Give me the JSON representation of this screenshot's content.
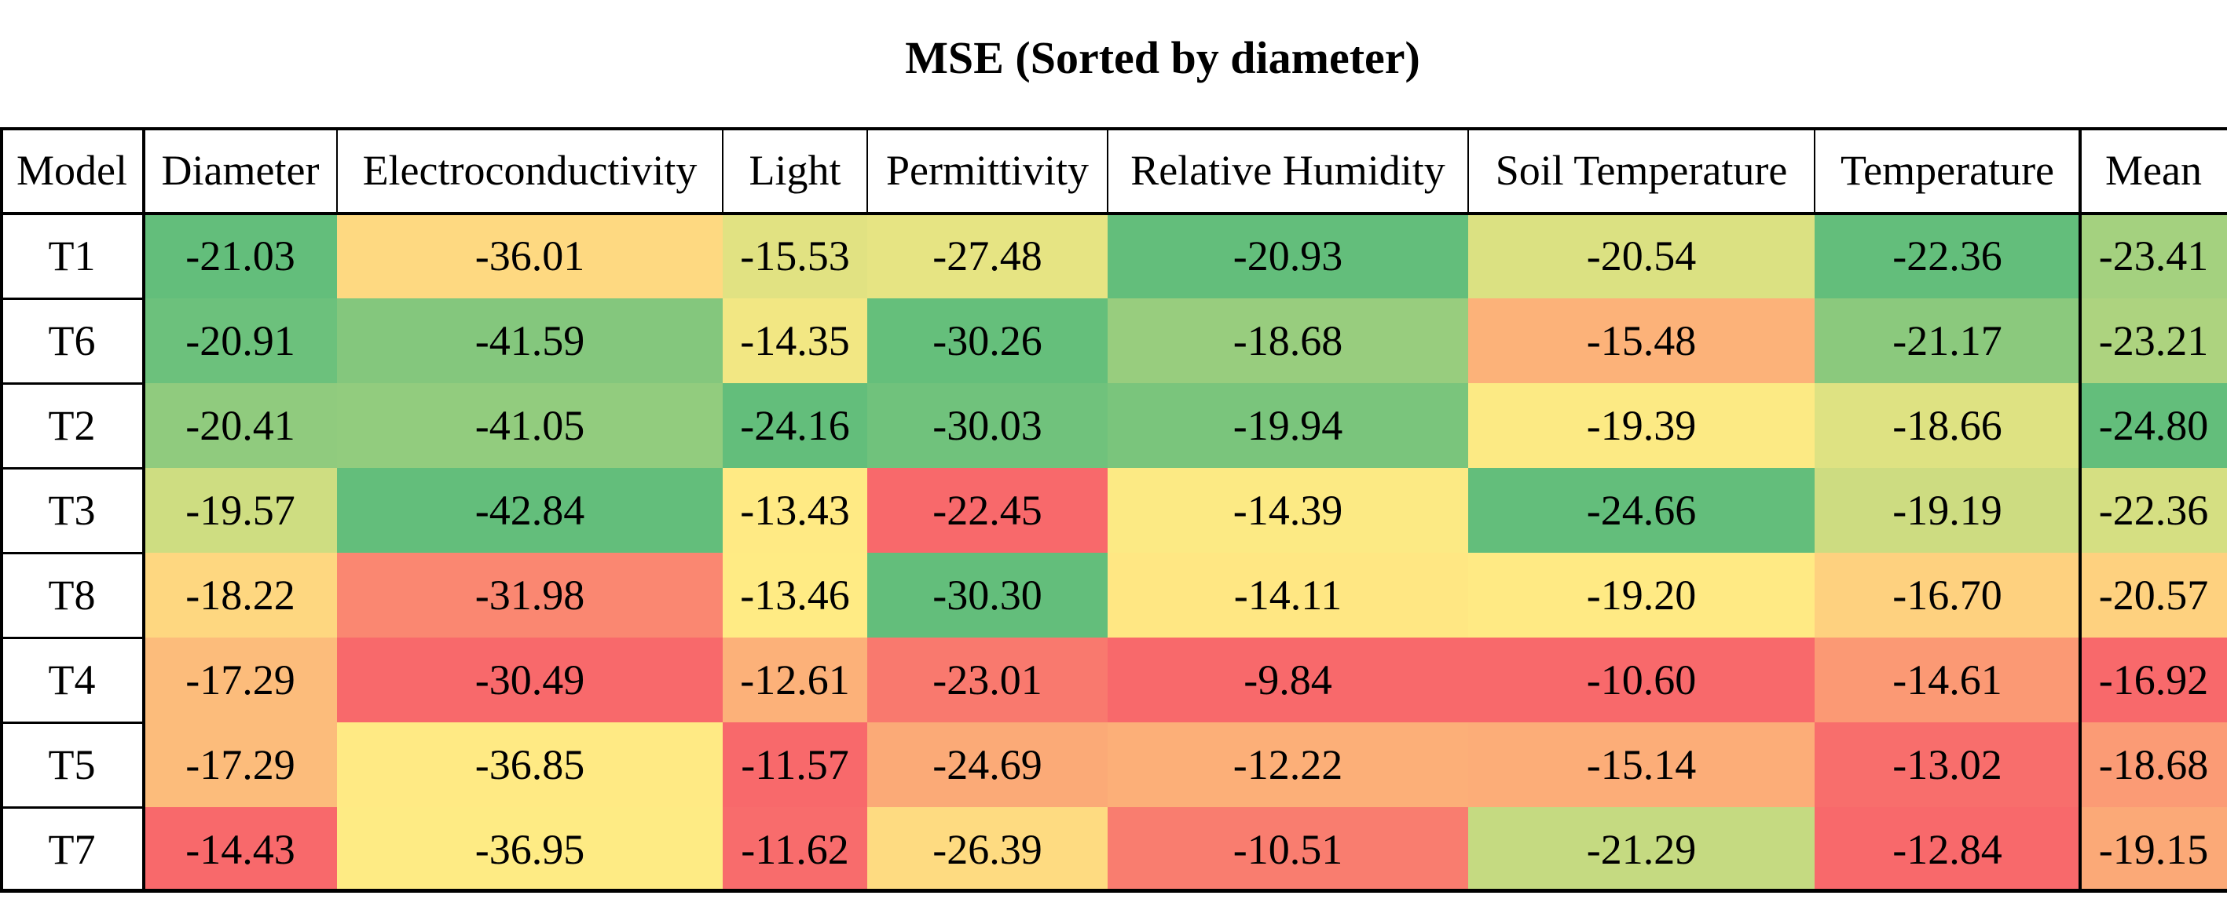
{
  "chart_data": {
    "type": "heatmap",
    "title": "MSE (Sorted by diameter)",
    "corner_label": "Model",
    "columns": [
      "Diameter",
      "Electroconductivity",
      "Light",
      "Permittivity",
      "Relative Humidity",
      "Soil Temperature",
      "Temperature",
      "Mean"
    ],
    "rows": [
      {
        "model": "T1",
        "values": [
          "-21.03",
          "-36.01",
          "-15.53",
          "-27.48",
          "-20.93",
          "-20.54",
          "-22.36",
          "-23.41"
        ]
      },
      {
        "model": "T6",
        "values": [
          "-20.91",
          "-41.59",
          "-14.35",
          "-30.26",
          "-18.68",
          "-15.48",
          "-21.17",
          "-23.21"
        ]
      },
      {
        "model": "T2",
        "values": [
          "-20.41",
          "-41.05",
          "-24.16",
          "-30.03",
          "-19.94",
          "-19.39",
          "-18.66",
          "-24.80"
        ]
      },
      {
        "model": "T3",
        "values": [
          "-19.57",
          "-42.84",
          "-13.43",
          "-22.45",
          "-14.39",
          "-24.66",
          "-19.19",
          "-22.36"
        ]
      },
      {
        "model": "T8",
        "values": [
          "-18.22",
          "-31.98",
          "-13.46",
          "-30.30",
          "-14.11",
          "-19.20",
          "-16.70",
          "-20.57"
        ]
      },
      {
        "model": "T4",
        "values": [
          "-17.29",
          "-30.49",
          "-12.61",
          "-23.01",
          "-9.84",
          "-10.60",
          "-14.61",
          "-16.92"
        ]
      },
      {
        "model": "T5",
        "values": [
          "-17.29",
          "-36.85",
          "-11.57",
          "-24.69",
          "-12.22",
          "-15.14",
          "-13.02",
          "-18.68"
        ]
      },
      {
        "model": "T7",
        "values": [
          "-14.43",
          "-36.95",
          "-11.62",
          "-26.39",
          "-10.51",
          "-21.29",
          "-12.84",
          "-19.15"
        ]
      }
    ],
    "colormap": {
      "low": "#63be7b",
      "mid": "#ffeb84",
      "high": "#f8696b",
      "rule": "per-column, lower value is greener"
    }
  }
}
